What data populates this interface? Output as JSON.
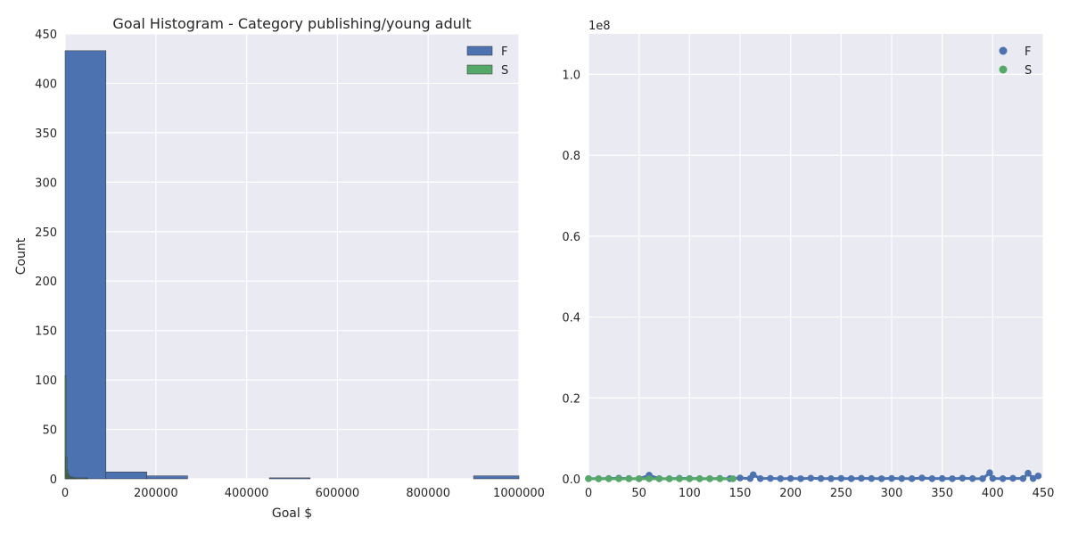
{
  "chart_data": [
    {
      "type": "bar",
      "title": "Goal Histogram - Category publishing/young adult",
      "xlabel": "Goal $",
      "ylabel": "Count",
      "xlim": [
        0,
        1000000
      ],
      "ylim": [
        0,
        450
      ],
      "xticks": [
        "0",
        "200000",
        "400000",
        "600000",
        "800000",
        "1000000"
      ],
      "yticks": [
        "0",
        "50",
        "100",
        "150",
        "200",
        "250",
        "300",
        "350",
        "400",
        "450"
      ],
      "grid": true,
      "legend_position": "top-right",
      "series": [
        {
          "name": "F",
          "color": "#4c72b0",
          "bins": [
            {
              "x0": 0,
              "x1": 90000,
              "count": 433
            },
            {
              "x0": 90000,
              "x1": 180000,
              "count": 7
            },
            {
              "x0": 180000,
              "x1": 270000,
              "count": 3
            },
            {
              "x0": 270000,
              "x1": 360000,
              "count": 0
            },
            {
              "x0": 360000,
              "x1": 450000,
              "count": 0
            },
            {
              "x0": 450000,
              "x1": 540000,
              "count": 1
            },
            {
              "x0": 540000,
              "x1": 630000,
              "count": 0
            },
            {
              "x0": 630000,
              "x1": 720000,
              "count": 0
            },
            {
              "x0": 720000,
              "x1": 810000,
              "count": 0
            },
            {
              "x0": 810000,
              "x1": 900000,
              "count": 0
            },
            {
              "x0": 900000,
              "x1": 1000000,
              "count": 3
            }
          ]
        },
        {
          "name": "S",
          "color": "#55a868",
          "bins": [
            {
              "x0": 0,
              "x1": 2000,
              "count": 104
            },
            {
              "x0": 2000,
              "x1": 4000,
              "count": 22
            },
            {
              "x0": 4000,
              "x1": 6000,
              "count": 9
            },
            {
              "x0": 6000,
              "x1": 8000,
              "count": 5
            },
            {
              "x0": 8000,
              "x1": 10000,
              "count": 3
            },
            {
              "x0": 10000,
              "x1": 12000,
              "count": 2
            },
            {
              "x0": 12000,
              "x1": 14000,
              "count": 1
            },
            {
              "x0": 14000,
              "x1": 16000,
              "count": 2
            },
            {
              "x0": 16000,
              "x1": 18000,
              "count": 1
            },
            {
              "x0": 18000,
              "x1": 20000,
              "count": 1
            },
            {
              "x0": 20000,
              "x1": 22000,
              "count": 1
            },
            {
              "x0": 22000,
              "x1": 24000,
              "count": 1
            },
            {
              "x0": 24000,
              "x1": 26000,
              "count": 1
            },
            {
              "x0": 26000,
              "x1": 28000,
              "count": 0
            },
            {
              "x0": 28000,
              "x1": 30000,
              "count": 1
            },
            {
              "x0": 30000,
              "x1": 32000,
              "count": 1
            },
            {
              "x0": 32000,
              "x1": 34000,
              "count": 0
            },
            {
              "x0": 34000,
              "x1": 36000,
              "count": 1
            },
            {
              "x0": 36000,
              "x1": 38000,
              "count": 0
            },
            {
              "x0": 38000,
              "x1": 40000,
              "count": 1
            },
            {
              "x0": 40000,
              "x1": 42000,
              "count": 0
            },
            {
              "x0": 42000,
              "x1": 44000,
              "count": 1
            },
            {
              "x0": 44000,
              "x1": 46000,
              "count": 0
            },
            {
              "x0": 46000,
              "x1": 48000,
              "count": 1
            },
            {
              "x0": 48000,
              "x1": 50000,
              "count": 1
            }
          ]
        }
      ]
    },
    {
      "type": "scatter",
      "title": "",
      "xlabel": "",
      "ylabel": "",
      "xlim": [
        0,
        450
      ],
      "ylim": [
        0,
        110000000
      ],
      "y_scale_label": "1e8",
      "xticks": [
        "0",
        "50",
        "100",
        "150",
        "200",
        "250",
        "300",
        "350",
        "400",
        "450"
      ],
      "yticks": [
        "0.0",
        "0.2",
        "0.4",
        "0.6",
        "0.8",
        "1.0"
      ],
      "grid": true,
      "legend_position": "top-right",
      "series": [
        {
          "name": "F",
          "color": "#4c72b0",
          "x_range": [
            0,
            445
          ],
          "y_values_note": "",
          "points": [
            [
              0,
              50000
            ],
            [
              10,
              20000
            ],
            [
              20,
              80000
            ],
            [
              30,
              150000
            ],
            [
              40,
              60000
            ],
            [
              50,
              30000
            ],
            [
              60,
              900000
            ],
            [
              70,
              40000
            ],
            [
              80,
              25000
            ],
            [
              90,
              120000
            ],
            [
              100,
              70000
            ],
            [
              110,
              50000
            ],
            [
              120,
              30000
            ],
            [
              130,
              90000
            ],
            [
              140,
              40000
            ],
            [
              150,
              200000
            ],
            [
              160,
              60000
            ],
            [
              163,
              1000000
            ],
            [
              170,
              50000
            ],
            [
              180,
              100000
            ],
            [
              190,
              40000
            ],
            [
              200,
              80000
            ],
            [
              210,
              30000
            ],
            [
              220,
              150000
            ],
            [
              230,
              60000
            ],
            [
              240,
              50000
            ],
            [
              250,
              90000
            ],
            [
              260,
              40000
            ],
            [
              270,
              120000
            ],
            [
              280,
              70000
            ],
            [
              290,
              30000
            ],
            [
              300,
              100000
            ],
            [
              310,
              60000
            ],
            [
              320,
              40000
            ],
            [
              330,
              200000
            ],
            [
              340,
              50000
            ],
            [
              350,
              80000
            ],
            [
              360,
              30000
            ],
            [
              370,
              150000
            ],
            [
              380,
              60000
            ],
            [
              390,
              40000
            ],
            [
              397,
              1500000
            ],
            [
              400,
              90000
            ],
            [
              410,
              50000
            ],
            [
              420,
              120000
            ],
            [
              430,
              70000
            ],
            [
              435,
              1400000
            ],
            [
              440,
              60000
            ],
            [
              445,
              700000
            ]
          ]
        },
        {
          "name": "S",
          "color": "#55a868",
          "x_range": [
            0,
            143
          ],
          "points": [
            [
              0,
              30000
            ],
            [
              10,
              10000
            ],
            [
              20,
              15000
            ],
            [
              30,
              8000
            ],
            [
              40,
              12000
            ],
            [
              50,
              20000
            ],
            [
              60,
              9000
            ],
            [
              70,
              14000
            ],
            [
              80,
              11000
            ],
            [
              90,
              7000
            ],
            [
              100,
              16000
            ],
            [
              110,
              10000
            ],
            [
              120,
              13000
            ],
            [
              130,
              9000
            ],
            [
              143,
              8000
            ]
          ]
        }
      ]
    }
  ]
}
